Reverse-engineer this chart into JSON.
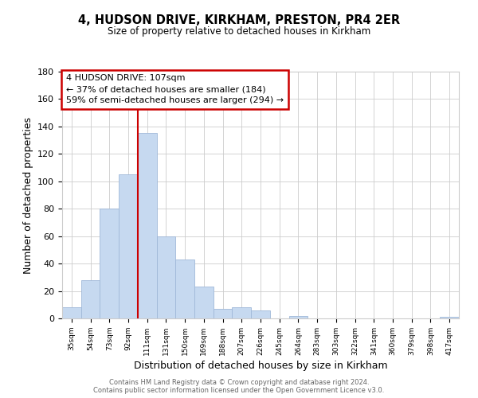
{
  "title": "4, HUDSON DRIVE, KIRKHAM, PRESTON, PR4 2ER",
  "subtitle": "Size of property relative to detached houses in Kirkham",
  "xlabel": "Distribution of detached houses by size in Kirkham",
  "ylabel": "Number of detached properties",
  "bar_labels": [
    "35sqm",
    "54sqm",
    "73sqm",
    "92sqm",
    "111sqm",
    "131sqm",
    "150sqm",
    "169sqm",
    "188sqm",
    "207sqm",
    "226sqm",
    "245sqm",
    "264sqm",
    "283sqm",
    "303sqm",
    "322sqm",
    "341sqm",
    "360sqm",
    "379sqm",
    "398sqm",
    "417sqm"
  ],
  "bar_values": [
    8,
    28,
    80,
    105,
    135,
    60,
    43,
    23,
    7,
    8,
    6,
    0,
    2,
    0,
    0,
    0,
    0,
    0,
    0,
    0,
    1
  ],
  "bar_color": "#c6d9f0",
  "bar_edge_color": "#a0b8d8",
  "ylim": [
    0,
    180
  ],
  "yticks": [
    0,
    20,
    40,
    60,
    80,
    100,
    120,
    140,
    160,
    180
  ],
  "vline_x": 4,
  "vline_color": "#cc0000",
  "annotation_title": "4 HUDSON DRIVE: 107sqm",
  "annotation_line1": "← 37% of detached houses are smaller (184)",
  "annotation_line2": "59% of semi-detached houses are larger (294) →",
  "annotation_box_color": "#ffffff",
  "annotation_box_edge": "#cc0000",
  "footer1": "Contains HM Land Registry data © Crown copyright and database right 2024.",
  "footer2": "Contains public sector information licensed under the Open Government Licence v3.0.",
  "background_color": "#ffffff",
  "grid_color": "#cccccc"
}
